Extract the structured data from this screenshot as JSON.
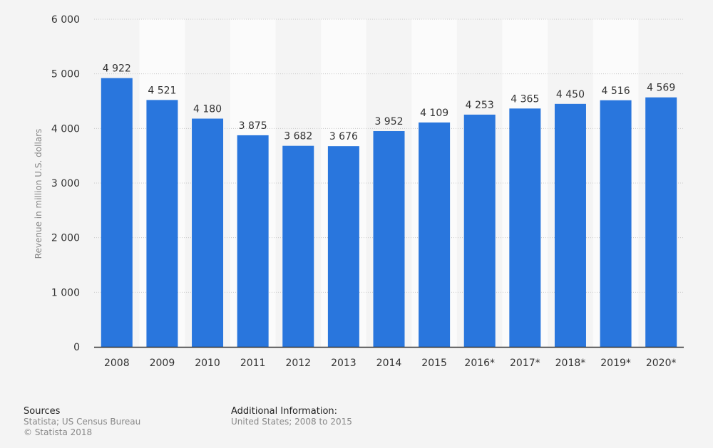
{
  "chart_data": {
    "type": "bar",
    "categories": [
      "2008",
      "2009",
      "2010",
      "2011",
      "2012",
      "2013",
      "2014",
      "2015",
      "2016*",
      "2017*",
      "2018*",
      "2019*",
      "2020*"
    ],
    "values": [
      4922,
      4521,
      4180,
      3875,
      3682,
      3676,
      3952,
      4109,
      4253,
      4365,
      4450,
      4516,
      4569
    ],
    "value_labels": [
      "4 922",
      "4 521",
      "4 180",
      "3 875",
      "3 682",
      "3 676",
      "3 952",
      "4 109",
      "4 253",
      "4 365",
      "4 450",
      "4 516",
      "4 569"
    ],
    "ylabel": "Revenue in million U.S. dollars",
    "ylim": [
      0,
      6000
    ],
    "yticks": [
      0,
      1000,
      2000,
      3000,
      4000,
      5000,
      6000
    ],
    "ytick_labels": [
      "0",
      "1 000",
      "2 000",
      "3 000",
      "4 000",
      "5 000",
      "6 000"
    ],
    "grid": true,
    "bar_color": "#2976dd"
  },
  "footer": {
    "sources_title": "Sources",
    "sources_lines": [
      "Statista; US Census Bureau",
      "© Statista 2018"
    ],
    "additional_title": "Additional Information:",
    "additional_lines": [
      "United States; 2008 to 2015"
    ]
  }
}
